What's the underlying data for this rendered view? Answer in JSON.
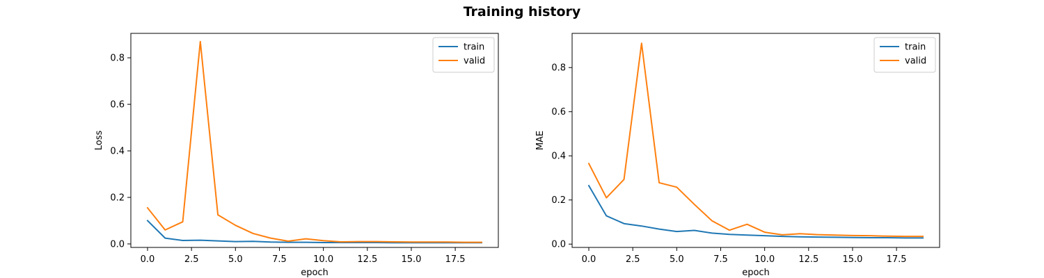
{
  "figure": {
    "title": "Training history"
  },
  "chart_data": [
    {
      "type": "line",
      "title": "",
      "xlabel": "epoch",
      "ylabel": "Loss",
      "xlim": [
        -0.95,
        19.95
      ],
      "ylim": [
        -0.015,
        0.905
      ],
      "xticks": [
        0.0,
        2.5,
        5.0,
        7.5,
        10.0,
        12.5,
        15.0,
        17.5
      ],
      "xtick_labels": [
        "0.0",
        "2.5",
        "5.0",
        "7.5",
        "10.0",
        "12.5",
        "15.0",
        "17.5"
      ],
      "yticks": [
        0.0,
        0.2,
        0.4,
        0.6,
        0.8
      ],
      "ytick_labels": [
        "0.0",
        "0.2",
        "0.4",
        "0.6",
        "0.8"
      ],
      "grid": false,
      "legend": "top-right",
      "x": [
        0,
        1,
        2,
        3,
        4,
        5,
        6,
        7,
        8,
        9,
        10,
        11,
        12,
        13,
        14,
        15,
        16,
        17,
        18,
        19
      ],
      "series": [
        {
          "name": "train",
          "color": "#1f77b4",
          "values": [
            0.1,
            0.025,
            0.015,
            0.016,
            0.013,
            0.01,
            0.011,
            0.008,
            0.007,
            0.007,
            0.006,
            0.006,
            0.006,
            0.006,
            0.005,
            0.005,
            0.005,
            0.005,
            0.005,
            0.005
          ]
        },
        {
          "name": "valid",
          "color": "#ff7f0e",
          "values": [
            0.155,
            0.06,
            0.095,
            0.87,
            0.125,
            0.08,
            0.045,
            0.025,
            0.012,
            0.022,
            0.014,
            0.009,
            0.01,
            0.01,
            0.009,
            0.008,
            0.008,
            0.008,
            0.007,
            0.007
          ]
        }
      ]
    },
    {
      "type": "line",
      "title": "",
      "xlabel": "epoch",
      "ylabel": "MAE",
      "xlim": [
        -0.95,
        19.95
      ],
      "ylim": [
        -0.015,
        0.955
      ],
      "xticks": [
        0.0,
        2.5,
        5.0,
        7.5,
        10.0,
        12.5,
        15.0,
        17.5
      ],
      "xtick_labels": [
        "0.0",
        "2.5",
        "5.0",
        "7.5",
        "10.0",
        "12.5",
        "15.0",
        "17.5"
      ],
      "yticks": [
        0.0,
        0.2,
        0.4,
        0.6,
        0.8
      ],
      "ytick_labels": [
        "0.0",
        "0.2",
        "0.4",
        "0.6",
        "0.8"
      ],
      "grid": false,
      "legend": "top-right",
      "x": [
        0,
        1,
        2,
        3,
        4,
        5,
        6,
        7,
        8,
        9,
        10,
        11,
        12,
        13,
        14,
        15,
        16,
        17,
        18,
        19
      ],
      "series": [
        {
          "name": "train",
          "color": "#1f77b4",
          "values": [
            0.265,
            0.128,
            0.093,
            0.082,
            0.068,
            0.057,
            0.062,
            0.05,
            0.044,
            0.041,
            0.038,
            0.035,
            0.033,
            0.032,
            0.031,
            0.03,
            0.029,
            0.029,
            0.028,
            0.028
          ]
        },
        {
          "name": "valid",
          "color": "#ff7f0e",
          "values": [
            0.365,
            0.21,
            0.293,
            0.91,
            0.278,
            0.258,
            0.18,
            0.106,
            0.063,
            0.09,
            0.054,
            0.042,
            0.047,
            0.043,
            0.041,
            0.039,
            0.038,
            0.036,
            0.035,
            0.035
          ]
        }
      ]
    }
  ]
}
